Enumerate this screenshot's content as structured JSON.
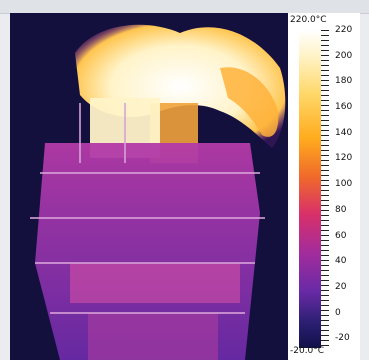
{
  "scale": {
    "max_label": "220.0°C",
    "min_label": "-20.0°C",
    "ticks": [
      "220",
      "200",
      "180",
      "160",
      "140",
      "120",
      "100",
      "80",
      "60",
      "40",
      "20",
      "0",
      "-20"
    ]
  },
  "colors": {
    "background": "#14103e",
    "hot": "#ffffff",
    "mid": "#d8306a",
    "cold": "#12104a"
  }
}
